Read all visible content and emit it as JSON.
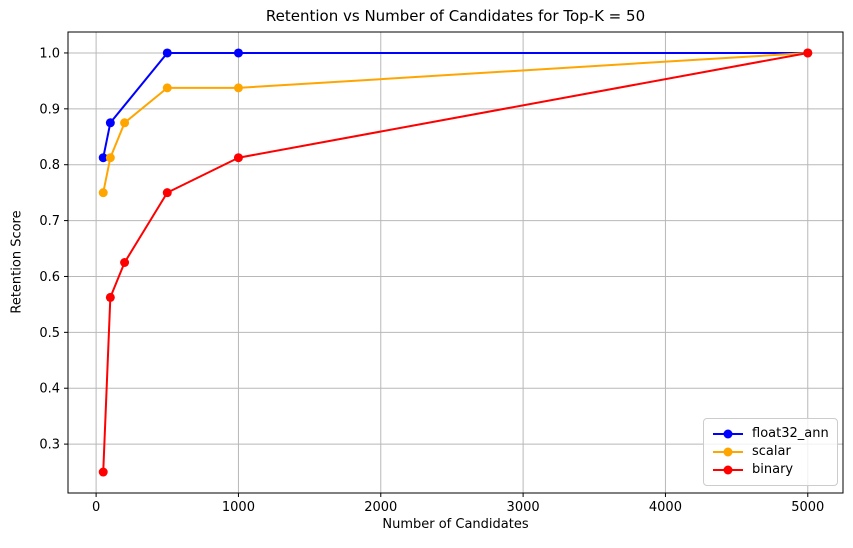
{
  "chart_data": {
    "type": "line",
    "title": "Retention vs Number of Candidates for Top-K = 50",
    "xlabel": "Number of Candidates",
    "ylabel": "Retention Score",
    "xlim": [
      -197.5,
      5247.5
    ],
    "ylim": [
      0.2125,
      1.0375
    ],
    "xticks": [
      0,
      1000,
      2000,
      3000,
      4000,
      5000
    ],
    "yticks": [
      0.3,
      0.4,
      0.5,
      0.6,
      0.7,
      0.8,
      0.9,
      1.0
    ],
    "grid": true,
    "grid_color": "#b8b8b8",
    "spine_color": "#000000",
    "legend_position": "lower right",
    "series": [
      {
        "name": "float32_ann",
        "color": "#0000ff",
        "x": [
          50,
          100,
          500,
          1000,
          5000
        ],
        "y": [
          0.8125,
          0.875,
          1.0,
          1.0,
          1.0
        ]
      },
      {
        "name": "scalar",
        "color": "#ffa500",
        "x": [
          50,
          100,
          200,
          500,
          1000,
          5000
        ],
        "y": [
          0.75,
          0.8125,
          0.875,
          0.9375,
          0.9375,
          1.0
        ]
      },
      {
        "name": "binary",
        "color": "#ff0000",
        "x": [
          50,
          100,
          200,
          500,
          1000,
          5000
        ],
        "y": [
          0.25,
          0.5625,
          0.625,
          0.75,
          0.8125,
          1.0
        ]
      }
    ]
  }
}
